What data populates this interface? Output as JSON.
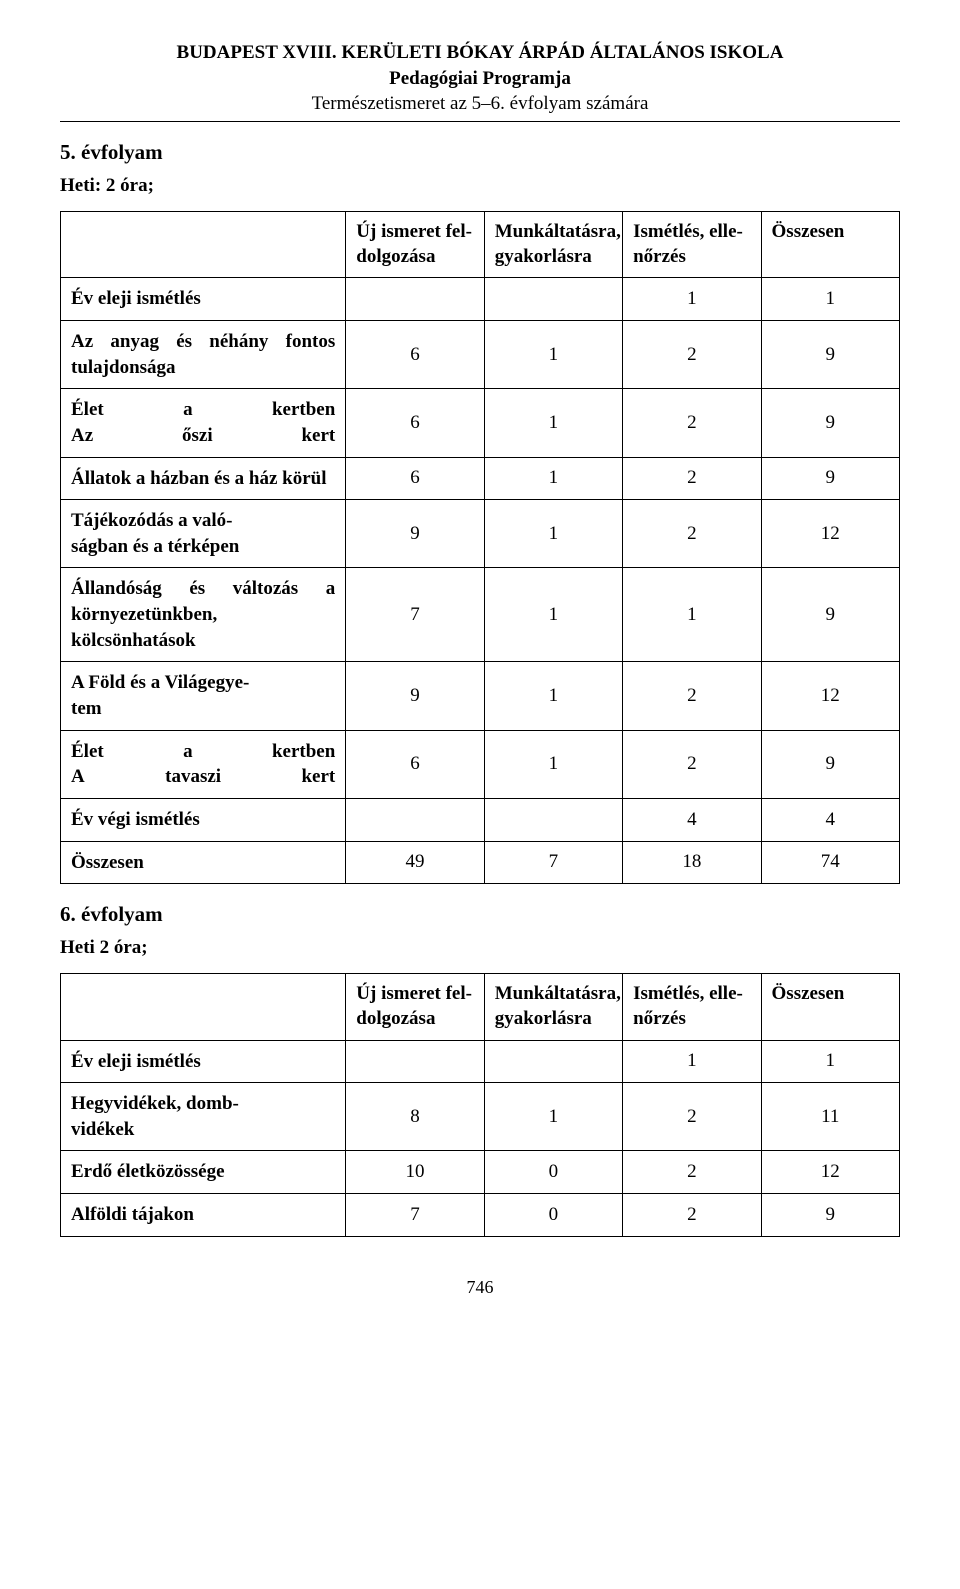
{
  "header": {
    "line1": "BUDAPEST XVIII. KERÜLETI BÓKAY ÁRPÁD ÁLTALÁNOS ISKOLA",
    "line2": "Pedagógiai Programja",
    "line3": "Természetismeret az 5–6. évfolyam számára"
  },
  "section5": {
    "title": "5. évfolyam",
    "hours": "Heti: 2 óra;"
  },
  "columns": {
    "blank": "",
    "c1": "Új ismeret fel-\ndolgozása",
    "c2": "Munkáltatásra, gyakorlásra",
    "c3": "Ismétlés, elle-\nnőrzés",
    "c4": "Összesen"
  },
  "table5": {
    "rows": [
      {
        "label": "Év eleji ismétlés",
        "c1": "",
        "c2": "",
        "c3": "1",
        "c4": "1"
      },
      {
        "label": "Az anyag és néhány fontos tulajdonsága",
        "c1": "6",
        "c2": "1",
        "c3": "2",
        "c4": "9"
      },
      {
        "label": "Élet a kertben Az őszi kert",
        "spread": true,
        "lines": [
          [
            "Élet",
            "a",
            "kertben"
          ],
          [
            "Az",
            "őszi",
            "kert"
          ]
        ],
        "c1": "6",
        "c2": "1",
        "c3": "2",
        "c4": "9"
      },
      {
        "label": "Állatok a házban és a ház körül",
        "c1": "6",
        "c2": "1",
        "c3": "2",
        "c4": "9"
      },
      {
        "label": "Tájékozódás a való-\nságban és a térképen",
        "c1": "9",
        "c2": "1",
        "c3": "2",
        "c4": "12"
      },
      {
        "label": "Állandóság és változás a környezetünkben, kölcsönhatások",
        "c1": "7",
        "c2": "1",
        "c3": "1",
        "c4": "9"
      },
      {
        "label": "A Föld és a Világegye-\ntem",
        "c1": "9",
        "c2": "1",
        "c3": "2",
        "c4": "12"
      },
      {
        "label": "Élet a kertben A tavaszi kert",
        "spread": true,
        "lines": [
          [
            "Élet",
            "a",
            "kertben"
          ],
          [
            "A",
            "tavaszi",
            "kert"
          ]
        ],
        "c1": "6",
        "c2": "1",
        "c3": "2",
        "c4": "9"
      },
      {
        "label": "Év végi ismétlés",
        "c1": "",
        "c2": "",
        "c3": "4",
        "c4": "4"
      },
      {
        "label": "Összesen",
        "c1": "49",
        "c2": "7",
        "c3": "18",
        "c4": "74"
      }
    ]
  },
  "section6": {
    "title": "6. évfolyam",
    "hours": "Heti 2 óra;"
  },
  "table6": {
    "rows": [
      {
        "label": "Év eleji ismétlés",
        "c1": "",
        "c2": "",
        "c3": "1",
        "c4": "1"
      },
      {
        "label": "Hegyvidékek, domb-\nvidékek",
        "c1": "8",
        "c2": "1",
        "c3": "2",
        "c4": "11"
      },
      {
        "label": "Erdő életközössége",
        "c1": "10",
        "c2": "0",
        "c3": "2",
        "c4": "12"
      },
      {
        "label": "Alföldi tájakon",
        "c1": "7",
        "c2": "0",
        "c3": "2",
        "c4": "9"
      }
    ]
  },
  "page_number": "746"
}
